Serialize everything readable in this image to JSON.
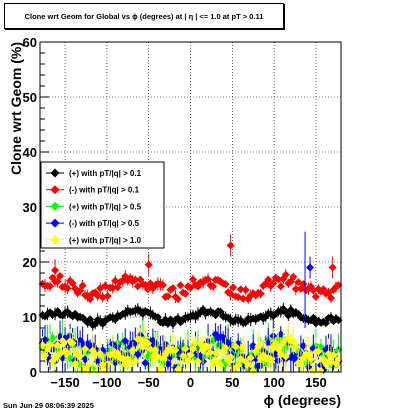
{
  "chart_data": {
    "type": "scatter",
    "title": "Clone wrt Geom for Global vs ϕ (degrees) at | η | <= 1.0 at pT > 0.11",
    "xlabel": "ϕ (degrees)",
    "ylabel": "Clone wrt Geom (%)",
    "xlim": [
      -180,
      180
    ],
    "ylim": [
      0,
      60
    ],
    "x_ticks": [
      "−150",
      "−100",
      "−50",
      "0",
      "50",
      "100",
      "150"
    ],
    "x_tick_values": [
      -150,
      -100,
      -50,
      0,
      50,
      100,
      150
    ],
    "y_ticks": [
      "0",
      "10",
      "20",
      "30",
      "40",
      "50",
      "60"
    ],
    "y_tick_values": [
      0,
      10,
      20,
      30,
      40,
      50,
      60
    ],
    "grid": true,
    "legend_position": "left-middle",
    "series": [
      {
        "name": "(+) with pT/|q| > 0.1",
        "color": "#000000",
        "marker": "diamond",
        "base": 10,
        "amp": 0.9,
        "noise": 0.6
      },
      {
        "name": "(-) with pT/|q| > 0.1",
        "color": "#ff0000",
        "marker": "diamond",
        "base": 15.5,
        "amp": 1.2,
        "noise": 1.2
      },
      {
        "name": "(+) with pT/|q| > 0.5",
        "color": "#00ff00",
        "marker": "diamond",
        "base": 3.5,
        "amp": 1.0,
        "noise": 2.2
      },
      {
        "name": "(-) with pT/|q| > 0.5",
        "color": "#0000ff",
        "marker": "diamond",
        "base": 3.5,
        "amp": 1.0,
        "noise": 2.5
      },
      {
        "name": "(+) with pT/|q| > 1.0",
        "color": "#ffff00",
        "marker": "diamond",
        "base": 3.0,
        "amp": 1.0,
        "noise": 2.4
      }
    ]
  },
  "footer": {
    "date": "Sun Jun 29 08:06:39 2025"
  }
}
